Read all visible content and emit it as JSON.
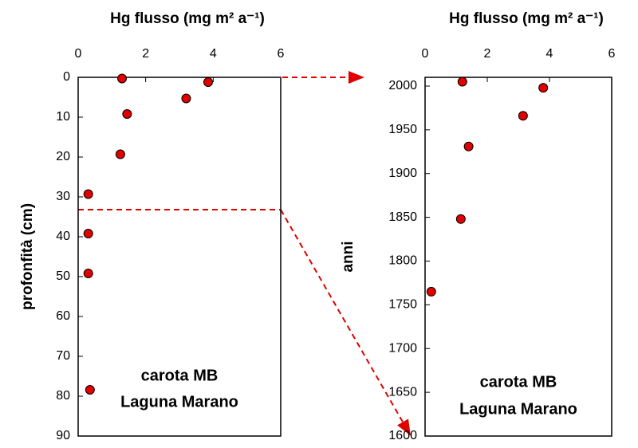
{
  "chart_data": [
    {
      "type": "scatter",
      "title": "Hg flusso (mg m² a⁻¹)",
      "y_label": "profonfità (cm)",
      "x": [
        1.3,
        3.85,
        3.2,
        1.45,
        1.25,
        0.3,
        0.3,
        0.3,
        0.35
      ],
      "values": [
        0.3,
        1.2,
        5.3,
        9.2,
        19.3,
        29.3,
        39.2,
        49.2,
        78.4
      ],
      "color": "#e00000",
      "xlim": [
        0,
        6
      ],
      "xticks": [
        0,
        2,
        4,
        6
      ],
      "ylim": [
        0,
        90
      ],
      "yticks": [
        0,
        10,
        20,
        30,
        40,
        50,
        60,
        70,
        80,
        90
      ],
      "y_reversed": true,
      "annotation": [
        "carota MB",
        "Laguna Marano"
      ]
    },
    {
      "type": "scatter",
      "title": "Hg flusso (mg m² a⁻¹)",
      "y_label": "anni",
      "x": [
        1.2,
        3.8,
        3.15,
        1.4,
        1.15,
        0.2
      ],
      "values": [
        2005,
        1998,
        1966,
        1931,
        1848,
        1765
      ],
      "color": "#e00000",
      "xlim": [
        0,
        6
      ],
      "xticks": [
        0,
        2,
        4,
        6
      ],
      "ylim": [
        1600,
        2010
      ],
      "yticks": [
        1600,
        1650,
        1700,
        1750,
        1800,
        1850,
        1900,
        1950,
        2000
      ],
      "y_reversed": false,
      "annotation": [
        "carota MB",
        "Laguna Marano"
      ]
    }
  ]
}
